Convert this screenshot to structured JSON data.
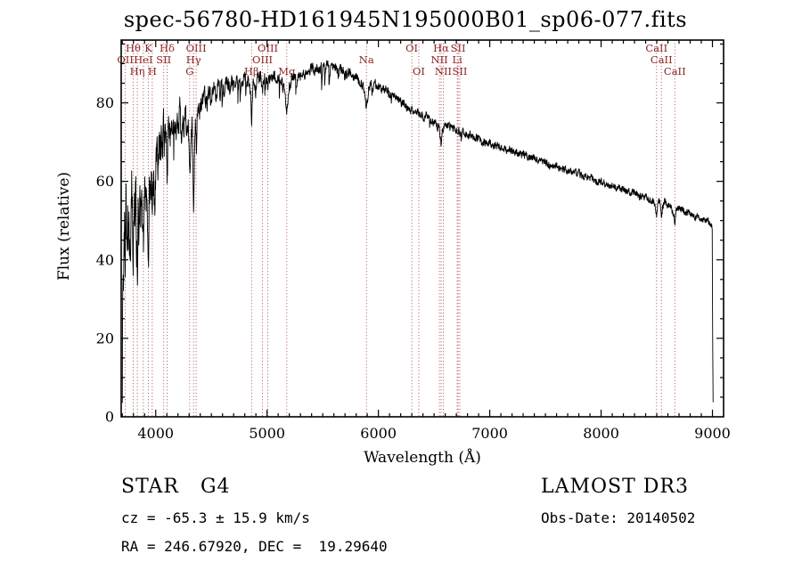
{
  "title": "spec-56780-HD161945N195000B01_sp06-077.fits",
  "annotations": {
    "class_label": "STAR   G4",
    "survey": "LAMOST DR3",
    "cz": "cz = -65.3 ± 15.9 km/s",
    "obs_date": "Obs-Date: 20140502",
    "radec": "RA = 246.67920, DEC =  19.29640"
  },
  "chart_data": {
    "type": "line",
    "title": "spec-56780-HD161945N195000B01_sp06-077.fits",
    "xlabel": "Wavelength (Å)",
    "ylabel": "Flux (relative)",
    "xlim": [
      3690,
      9100
    ],
    "ylim": [
      0,
      96
    ],
    "xticks": [
      4000,
      5000,
      6000,
      7000,
      8000,
      9000
    ],
    "yticks": [
      0,
      20,
      40,
      60,
      80
    ],
    "minor_tick_step_x": 100,
    "minor_tick_step_y": 5,
    "grid": false,
    "legend": "none",
    "line_color": "#000000",
    "marker_color": "#a03c3c",
    "label_color": "#8b2323",
    "spectral_lines": [
      {
        "label": "OII",
        "wavelength": 3727,
        "row": 2
      },
      {
        "label": "Hθ",
        "wavelength": 3798,
        "row": 1
      },
      {
        "label": "Hη",
        "wavelength": 3835,
        "row": 3
      },
      {
        "label": "HeI",
        "wavelength": 3889,
        "row": 2
      },
      {
        "label": "K",
        "wavelength": 3934,
        "row": 1
      },
      {
        "label": "H",
        "wavelength": 3969,
        "row": 3
      },
      {
        "label": "SII",
        "wavelength": 4072,
        "row": 2
      },
      {
        "label": "Hδ",
        "wavelength": 4102,
        "row": 1
      },
      {
        "label": "G",
        "wavelength": 4305,
        "row": 3
      },
      {
        "label": "Hγ",
        "wavelength": 4340,
        "row": 2
      },
      {
        "label": "OIII",
        "wavelength": 4363,
        "row": 1
      },
      {
        "label": "Hβ",
        "wavelength": 4861,
        "row": 3
      },
      {
        "label": "OIII",
        "wavelength": 4959,
        "row": 2
      },
      {
        "label": "OIII",
        "wavelength": 5007,
        "row": 1
      },
      {
        "label": "Mg",
        "wavelength": 5177,
        "row": 3
      },
      {
        "label": "Na",
        "wavelength": 5893,
        "row": 2
      },
      {
        "label": "OI",
        "wavelength": 6300,
        "row": 1
      },
      {
        "label": "OI",
        "wavelength": 6363,
        "row": 3
      },
      {
        "label": "NII",
        "wavelength": 6548,
        "row": 2
      },
      {
        "label": "Hα",
        "wavelength": 6563,
        "row": 1
      },
      {
        "label": "NII",
        "wavelength": 6583,
        "row": 3
      },
      {
        "label": "Li",
        "wavelength": 6708,
        "row": 2
      },
      {
        "label": "SII",
        "wavelength": 6716,
        "row": 1
      },
      {
        "label": "SII",
        "wavelength": 6731,
        "row": 3
      },
      {
        "label": "CaII",
        "wavelength": 8498,
        "row": 1
      },
      {
        "label": "CaII",
        "wavelength": 8542,
        "row": 2
      },
      {
        "label": "CaII",
        "wavelength": 8662,
        "row": 3
      }
    ],
    "envelope_points": [
      [
        3700,
        8
      ],
      [
        3703,
        28
      ],
      [
        3708,
        45
      ],
      [
        3715,
        38
      ],
      [
        3722,
        52
      ],
      [
        3727,
        42
      ],
      [
        3734,
        50
      ],
      [
        3742,
        44
      ],
      [
        3750,
        55
      ],
      [
        3758,
        40
      ],
      [
        3766,
        52
      ],
      [
        3775,
        46
      ],
      [
        3784,
        56
      ],
      [
        3792,
        48
      ],
      [
        3798,
        42
      ],
      [
        3806,
        54
      ],
      [
        3814,
        47
      ],
      [
        3822,
        56
      ],
      [
        3830,
        49
      ],
      [
        3835,
        41
      ],
      [
        3842,
        53
      ],
      [
        3850,
        47
      ],
      [
        3858,
        56
      ],
      [
        3866,
        50
      ],
      [
        3874,
        57
      ],
      [
        3882,
        49
      ],
      [
        3889,
        43
      ],
      [
        3896,
        54
      ],
      [
        3904,
        58
      ],
      [
        3912,
        52
      ],
      [
        3920,
        60
      ],
      [
        3928,
        54
      ],
      [
        3934,
        39
      ],
      [
        3942,
        57
      ],
      [
        3950,
        62
      ],
      [
        3958,
        56
      ],
      [
        3964,
        60
      ],
      [
        3969,
        47
      ],
      [
        3976,
        60
      ],
      [
        3984,
        64
      ],
      [
        3992,
        60
      ],
      [
        4000,
        66
      ],
      [
        4010,
        70
      ],
      [
        4020,
        65
      ],
      [
        4030,
        71
      ],
      [
        4040,
        67
      ],
      [
        4050,
        72
      ],
      [
        4060,
        68
      ],
      [
        4070,
        73
      ],
      [
        4080,
        69
      ],
      [
        4090,
        72
      ],
      [
        4096,
        68
      ],
      [
        4102,
        61
      ],
      [
        4110,
        70
      ],
      [
        4120,
        74
      ],
      [
        4132,
        70
      ],
      [
        4144,
        75
      ],
      [
        4156,
        71
      ],
      [
        4168,
        76
      ],
      [
        4180,
        73
      ],
      [
        4192,
        77
      ],
      [
        4204,
        74
      ],
      [
        4216,
        78
      ],
      [
        4228,
        74
      ],
      [
        4240,
        77
      ],
      [
        4252,
        73
      ],
      [
        4264,
        78
      ],
      [
        4276,
        74
      ],
      [
        4290,
        76
      ],
      [
        4300,
        68
      ],
      [
        4308,
        62
      ],
      [
        4316,
        70
      ],
      [
        4326,
        74
      ],
      [
        4334,
        64
      ],
      [
        4340,
        50
      ],
      [
        4348,
        66
      ],
      [
        4356,
        74
      ],
      [
        4363,
        70
      ],
      [
        4372,
        77
      ],
      [
        4382,
        80
      ],
      [
        4395,
        77
      ],
      [
        4410,
        81
      ],
      [
        4425,
        79
      ],
      [
        4440,
        82
      ],
      [
        4460,
        80
      ],
      [
        4480,
        83
      ],
      [
        4500,
        81
      ],
      [
        4520,
        84
      ],
      [
        4540,
        82
      ],
      [
        4560,
        85
      ],
      [
        4580,
        83
      ],
      [
        4600,
        85
      ],
      [
        4620,
        84
      ],
      [
        4640,
        86
      ],
      [
        4660,
        84
      ],
      [
        4680,
        86
      ],
      [
        4700,
        85
      ],
      [
        4720,
        87
      ],
      [
        4740,
        85
      ],
      [
        4760,
        87
      ],
      [
        4780,
        86
      ],
      [
        4800,
        87
      ],
      [
        4815,
        85
      ],
      [
        4830,
        86
      ],
      [
        4845,
        84
      ],
      [
        4853,
        83
      ],
      [
        4861,
        73
      ],
      [
        4870,
        83
      ],
      [
        4880,
        86
      ],
      [
        4895,
        85
      ],
      [
        4910,
        87
      ],
      [
        4925,
        86
      ],
      [
        4940,
        87
      ],
      [
        4952,
        85
      ],
      [
        4959,
        83
      ],
      [
        4968,
        86
      ],
      [
        4980,
        87
      ],
      [
        4995,
        86
      ],
      [
        5007,
        84
      ],
      [
        5016,
        86
      ],
      [
        5030,
        87
      ],
      [
        5045,
        86
      ],
      [
        5060,
        87
      ],
      [
        5075,
        86
      ],
      [
        5090,
        87
      ],
      [
        5105,
        86
      ],
      [
        5120,
        87
      ],
      [
        5135,
        86
      ],
      [
        5150,
        85
      ],
      [
        5160,
        83
      ],
      [
        5170,
        79
      ],
      [
        5177,
        77
      ],
      [
        5185,
        80
      ],
      [
        5195,
        84
      ],
      [
        5210,
        86
      ],
      [
        5225,
        87
      ],
      [
        5240,
        86
      ],
      [
        5255,
        87
      ],
      [
        5270,
        86
      ],
      [
        5285,
        88
      ],
      [
        5300,
        87
      ],
      [
        5320,
        88
      ],
      [
        5340,
        87
      ],
      [
        5360,
        88
      ],
      [
        5380,
        88
      ],
      [
        5400,
        89
      ],
      [
        5420,
        88
      ],
      [
        5440,
        89
      ],
      [
        5460,
        88
      ],
      [
        5480,
        89
      ],
      [
        5500,
        90
      ],
      [
        5520,
        89
      ],
      [
        5540,
        90
      ],
      [
        5560,
        89
      ],
      [
        5580,
        90
      ],
      [
        5600,
        89
      ],
      [
        5620,
        89
      ],
      [
        5640,
        88
      ],
      [
        5660,
        89
      ],
      [
        5680,
        88
      ],
      [
        5700,
        88
      ],
      [
        5720,
        87
      ],
      [
        5740,
        88
      ],
      [
        5760,
        87
      ],
      [
        5780,
        86
      ],
      [
        5800,
        87
      ],
      [
        5820,
        86
      ],
      [
        5840,
        85
      ],
      [
        5860,
        84
      ],
      [
        5875,
        83
      ],
      [
        5885,
        80
      ],
      [
        5893,
        78
      ],
      [
        5902,
        81
      ],
      [
        5912,
        84
      ],
      [
        5930,
        85
      ],
      [
        5950,
        84
      ],
      [
        5970,
        85
      ],
      [
        5990,
        84
      ],
      [
        6010,
        84
      ],
      [
        6030,
        83
      ],
      [
        6050,
        84
      ],
      [
        6070,
        83
      ],
      [
        6090,
        83
      ],
      [
        6110,
        82
      ],
      [
        6130,
        83
      ],
      [
        6150,
        82
      ],
      [
        6170,
        81
      ],
      [
        6190,
        81
      ],
      [
        6210,
        80
      ],
      [
        6230,
        80
      ],
      [
        6250,
        79
      ],
      [
        6270,
        79
      ],
      [
        6290,
        78
      ],
      [
        6310,
        78
      ],
      [
        6330,
        77
      ],
      [
        6350,
        78
      ],
      [
        6370,
        77
      ],
      [
        6390,
        77
      ],
      [
        6410,
        76
      ],
      [
        6430,
        77
      ],
      [
        6450,
        76
      ],
      [
        6470,
        76
      ],
      [
        6490,
        75
      ],
      [
        6510,
        75
      ],
      [
        6530,
        74
      ],
      [
        6548,
        74
      ],
      [
        6556,
        71
      ],
      [
        6563,
        69
      ],
      [
        6572,
        73
      ],
      [
        6583,
        74
      ],
      [
        6600,
        75
      ],
      [
        6620,
        74
      ],
      [
        6640,
        74
      ],
      [
        6660,
        73
      ],
      [
        6680,
        74
      ],
      [
        6700,
        73
      ],
      [
        6720,
        73
      ],
      [
        6740,
        72
      ],
      [
        6760,
        73
      ],
      [
        6780,
        72
      ],
      [
        6800,
        72
      ],
      [
        6830,
        72
      ],
      [
        6860,
        71
      ],
      [
        6890,
        71
      ],
      [
        6920,
        70
      ],
      [
        6950,
        70
      ],
      [
        6980,
        70
      ],
      [
        7000,
        70
      ],
      [
        7050,
        69
      ],
      [
        7100,
        69
      ],
      [
        7150,
        68
      ],
      [
        7200,
        68
      ],
      [
        7250,
        67
      ],
      [
        7300,
        67
      ],
      [
        7350,
        66
      ],
      [
        7400,
        66
      ],
      [
        7450,
        65
      ],
      [
        7500,
        65
      ],
      [
        7550,
        64
      ],
      [
        7600,
        64
      ],
      [
        7650,
        63
      ],
      [
        7700,
        63
      ],
      [
        7750,
        62
      ],
      [
        7800,
        62
      ],
      [
        7850,
        61
      ],
      [
        7900,
        61
      ],
      [
        7950,
        60
      ],
      [
        8000,
        60
      ],
      [
        8050,
        59
      ],
      [
        8100,
        59
      ],
      [
        8150,
        58
      ],
      [
        8200,
        58
      ],
      [
        8250,
        57
      ],
      [
        8300,
        57
      ],
      [
        8350,
        56
      ],
      [
        8400,
        56
      ],
      [
        8440,
        55
      ],
      [
        8470,
        55
      ],
      [
        8490,
        53
      ],
      [
        8498,
        51
      ],
      [
        8508,
        54
      ],
      [
        8525,
        55
      ],
      [
        8535,
        53
      ],
      [
        8542,
        50
      ],
      [
        8552,
        53
      ],
      [
        8570,
        55
      ],
      [
        8590,
        54
      ],
      [
        8610,
        54
      ],
      [
        8630,
        53
      ],
      [
        8650,
        52
      ],
      [
        8662,
        49
      ],
      [
        8672,
        52
      ],
      [
        8690,
        53
      ],
      [
        8720,
        53
      ],
      [
        8750,
        52
      ],
      [
        8780,
        52
      ],
      [
        8810,
        52
      ],
      [
        8840,
        51
      ],
      [
        8870,
        51
      ],
      [
        8900,
        50
      ],
      [
        8930,
        50
      ],
      [
        8960,
        50
      ],
      [
        8985,
        49
      ],
      [
        8998,
        48
      ],
      [
        9002,
        20
      ],
      [
        9006,
        3
      ]
    ],
    "noise_profile": [
      [
        3700,
        8.5
      ],
      [
        3900,
        6
      ],
      [
        4100,
        4
      ],
      [
        4400,
        2.2
      ],
      [
        4800,
        1.6
      ],
      [
        5300,
        1.2
      ],
      [
        6000,
        1.0
      ],
      [
        6800,
        0.9
      ],
      [
        9006,
        0.85
      ]
    ]
  }
}
